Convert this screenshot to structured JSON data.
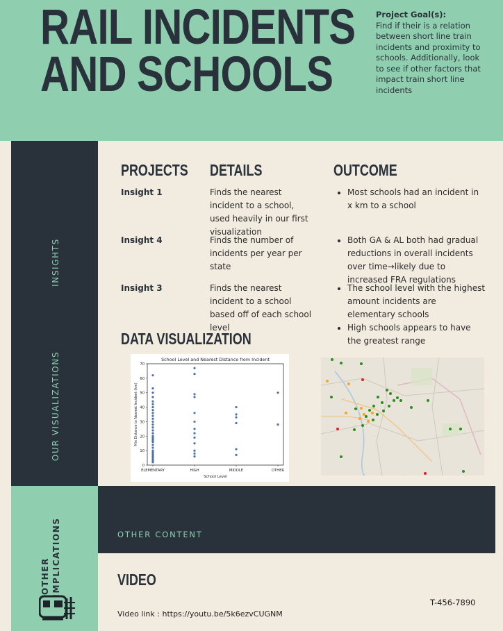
{
  "header": {
    "title_line1": "RAIL INCIDENTS",
    "title_line2": "AND SCHOOLS",
    "goal_heading": "Project Goal(s):",
    "goal_text": "Find if their is a relation between short line train incidents and proximity to schools. Additionally, look to see if other factors that impact train short line incidents"
  },
  "sidebar": {
    "insights_label": "INSIGHTS",
    "visualizations_label": "OUR VISUALIZATIONS",
    "implications_label_line1": "OTHER",
    "implications_label_line2": "IMPLICATIONS",
    "train_icon": "train-icon"
  },
  "table": {
    "projects_heading": "PROJECTS",
    "details_heading": "DETAILS",
    "outcome_heading": "OUTCOME",
    "rows": [
      {
        "insight": "Insight 1",
        "detail": "Finds the nearest incident to a school, used heavily in our first visualization"
      },
      {
        "insight": "Insight 4",
        "detail": "Finds the number of incidents per year per state"
      },
      {
        "insight": "Insight 3",
        "detail": "Finds the nearest incident to a school based off of each school level"
      }
    ],
    "outcomes": [
      "Most schools had an incident in x km to a school",
      "Both GA & AL both had gradual reductions in overall incidents over time→likely due to increased FRA regulations",
      "The school level with the highest amount incidents are elementary schools",
      "High schools appears to have the greatest range"
    ]
  },
  "data_viz": {
    "heading": "DATA VISUALIZATION"
  },
  "chart_data": {
    "type": "scatter",
    "title": "School Level and Nearest Distance from Incident",
    "xlabel": "School Level",
    "ylabel": "Min Distance to Nearest Incident (km)",
    "categories": [
      "ELEMENTARY",
      "HIGH",
      "MIDDLE",
      "OTHER"
    ],
    "ylim": [
      0,
      70
    ],
    "yticks": [
      0,
      10,
      20,
      30,
      40,
      50,
      60,
      70
    ],
    "point_color": "#4c72b0",
    "points": {
      "ELEMENTARY": [
        62,
        53,
        50,
        47,
        44,
        42,
        40,
        38,
        36,
        34,
        32,
        30,
        28,
        26,
        24,
        22,
        20,
        19,
        18,
        17,
        16,
        14,
        12,
        10,
        9,
        8,
        7,
        6,
        5,
        4,
        3,
        2
      ],
      "HIGH": [
        67,
        63,
        49,
        47,
        36,
        30,
        25,
        22,
        19,
        15,
        10,
        8,
        6
      ],
      "MIDDLE": [
        40,
        35,
        33,
        29,
        11,
        7
      ],
      "OTHER": [
        50,
        28
      ]
    }
  },
  "map": {
    "description_icon": "map-icon"
  },
  "footer": {
    "other_content": "OTHER CONTENT",
    "video_heading": "VIDEO",
    "video_link": "Video link : https://youtu.be/5k6ezvCUGNM",
    "phone": "T-456-7890"
  }
}
